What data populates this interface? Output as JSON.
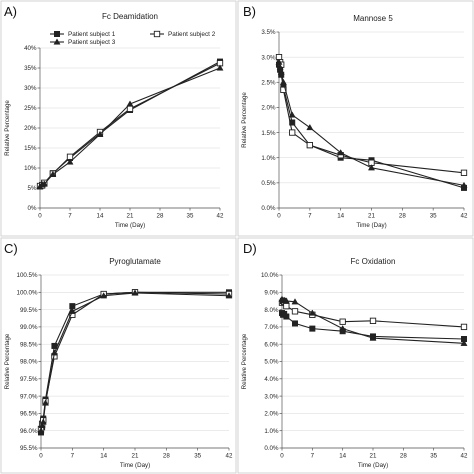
{
  "series_styles": [
    {
      "marker": "square-filled",
      "color": "#222222"
    },
    {
      "marker": "square-open",
      "color": "#222222"
    },
    {
      "marker": "triangle-filled",
      "color": "#222222"
    }
  ],
  "chart_data": [
    {
      "panel_label": "A)",
      "type": "line",
      "title": "Fc  Deamidation",
      "xlabel": "Time (Day)",
      "ylabel": "Relative Percentage",
      "xlim": [
        0,
        42
      ],
      "ylim": [
        0,
        40
      ],
      "x_ticks": [
        0,
        7,
        14,
        21,
        28,
        35,
        42
      ],
      "y_ticks": [
        0,
        5,
        10,
        15,
        20,
        25,
        30,
        35,
        40
      ],
      "y_tick_labels": [
        "0%",
        "5%",
        "10%",
        "15%",
        "20%",
        "25%",
        "30%",
        "35%",
        "40%"
      ],
      "grid": true,
      "legend": "top-left",
      "series": [
        {
          "name": "Patient subject 1",
          "x": [
            0,
            0.5,
            1,
            3,
            7,
            14,
            21,
            42
          ],
          "y": [
            5.4,
            5.6,
            6.1,
            8.7,
            12.5,
            18.6,
            24.5,
            36.6
          ]
        },
        {
          "name": "Patient subject 2",
          "x": [
            0,
            0.5,
            1,
            3,
            7,
            14,
            21,
            42
          ],
          "y": [
            5.5,
            5.7,
            6.3,
            8.6,
            12.8,
            19.0,
            24.8,
            36.2
          ]
        },
        {
          "name": "Patient subject 3",
          "x": [
            0,
            0.5,
            1,
            3,
            7,
            14,
            21,
            42
          ],
          "y": [
            5.3,
            5.9,
            6.0,
            8.4,
            11.5,
            18.4,
            26.0,
            35.0
          ]
        }
      ]
    },
    {
      "panel_label": "B)",
      "type": "line",
      "title": "Mannose 5",
      "xlabel": "Time (Day)",
      "ylabel": "Relative Percentage",
      "xlim": [
        0,
        42
      ],
      "ylim": [
        0,
        3.5
      ],
      "x_ticks": [
        0,
        7,
        14,
        21,
        28,
        35,
        42
      ],
      "y_ticks": [
        0,
        0.5,
        1.0,
        1.5,
        2.0,
        2.5,
        3.0,
        3.5
      ],
      "y_tick_labels": [
        "0.0%",
        "0.5%",
        "1.0%",
        "1.5%",
        "2.0%",
        "2.5%",
        "3.0%",
        "3.5%"
      ],
      "grid": true,
      "series": [
        {
          "x": [
            0,
            0.25,
            0.5,
            1,
            3,
            7,
            14,
            21,
            42
          ],
          "y": [
            2.85,
            2.75,
            2.65,
            2.4,
            1.7,
            1.25,
            1.0,
            0.95,
            0.4
          ]
        },
        {
          "x": [
            0,
            0.25,
            0.5,
            1,
            3,
            7,
            14,
            21,
            42
          ],
          "y": [
            3.0,
            2.9,
            2.85,
            2.35,
            1.5,
            1.25,
            1.05,
            0.9,
            0.7
          ]
        },
        {
          "x": [
            0,
            0.25,
            0.5,
            1,
            3,
            7,
            14,
            21,
            42
          ],
          "y": [
            2.9,
            2.8,
            2.7,
            2.5,
            1.85,
            1.6,
            1.1,
            0.8,
            0.45
          ]
        }
      ]
    },
    {
      "panel_label": "C)",
      "type": "line",
      "title": "Pyroglutamate",
      "xlabel": "Time (Day)",
      "ylabel": "Relative Percentage",
      "xlim": [
        0,
        42
      ],
      "ylim": [
        95.5,
        100.5
      ],
      "x_ticks": [
        0,
        7,
        14,
        21,
        28,
        35,
        42
      ],
      "y_ticks": [
        95.5,
        96.0,
        96.5,
        97.0,
        97.5,
        98.0,
        98.5,
        99.0,
        99.5,
        100.0,
        100.5
      ],
      "y_tick_labels": [
        "95.5%",
        "96.0%",
        "96.5%",
        "97.0%",
        "97.5%",
        "98.0%",
        "98.5%",
        "99.0%",
        "99.5%",
        "100.0%",
        "100.5%"
      ],
      "grid": true,
      "series": [
        {
          "x": [
            0,
            0.25,
            0.5,
            1,
            3,
            7,
            14,
            21,
            42
          ],
          "y": [
            95.95,
            96.1,
            96.35,
            96.9,
            98.45,
            99.6,
            99.95,
            100.0,
            100.0
          ]
        },
        {
          "x": [
            0,
            0.25,
            0.5,
            1,
            3,
            7,
            14,
            21,
            42
          ],
          "y": [
            96.05,
            96.2,
            96.3,
            96.85,
            98.15,
            99.35,
            99.95,
            100.0,
            99.95
          ]
        },
        {
          "x": [
            0,
            0.25,
            0.5,
            1,
            3,
            7,
            14,
            21,
            42
          ],
          "y": [
            96.0,
            96.15,
            96.25,
            96.8,
            98.25,
            99.45,
            99.9,
            99.98,
            99.9
          ]
        }
      ]
    },
    {
      "panel_label": "D)",
      "type": "line",
      "title": "Fc Oxidation",
      "xlabel": "Time (Day)",
      "ylabel": "Relative Percentage",
      "xlim": [
        0,
        42
      ],
      "ylim": [
        0,
        10
      ],
      "x_ticks": [
        0,
        7,
        14,
        21,
        28,
        35,
        42
      ],
      "y_ticks": [
        0,
        1,
        2,
        3,
        4,
        5,
        6,
        7,
        8,
        9,
        10
      ],
      "y_tick_labels": [
        "0.0%",
        "1.0%",
        "2.0%",
        "3.0%",
        "4.0%",
        "5.0%",
        "6.0%",
        "7.0%",
        "8.0%",
        "9.0%",
        "10.0%"
      ],
      "grid": true,
      "series": [
        {
          "x": [
            0,
            0.25,
            0.5,
            1,
            3,
            7,
            14,
            21,
            42
          ],
          "y": [
            7.8,
            7.7,
            7.75,
            7.6,
            7.2,
            6.9,
            6.75,
            6.45,
            6.3
          ]
        },
        {
          "x": [
            0,
            0.25,
            0.5,
            1,
            3,
            7,
            14,
            21,
            42
          ],
          "y": [
            8.4,
            8.5,
            8.45,
            8.2,
            7.9,
            7.7,
            7.3,
            7.35,
            7.0
          ]
        },
        {
          "x": [
            0,
            0.25,
            0.5,
            1,
            3,
            7,
            14,
            21,
            42
          ],
          "y": [
            8.6,
            8.5,
            8.55,
            8.5,
            8.45,
            7.8,
            6.9,
            6.35,
            6.05
          ]
        }
      ]
    }
  ]
}
